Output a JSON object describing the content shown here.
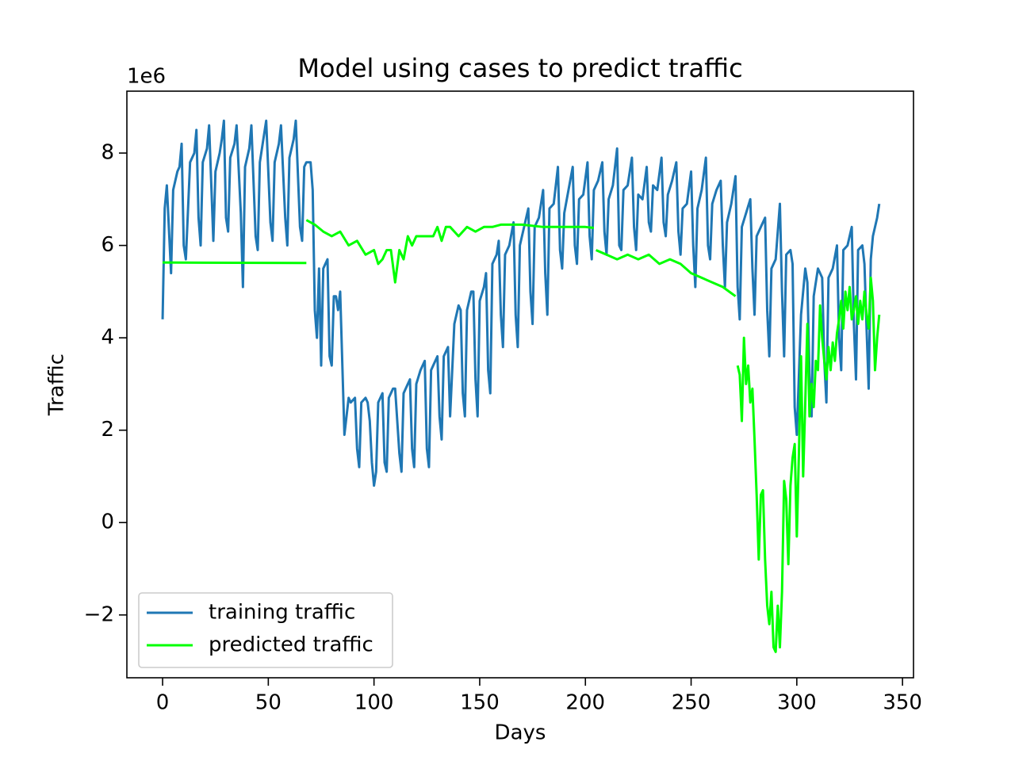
{
  "chart_data": {
    "type": "line",
    "title": "Model using cases to predict traffic",
    "xlabel": "Days",
    "ylabel": "Traffic",
    "y_offset_label": "1e6",
    "xlim": [
      -16.9,
      355.2
    ],
    "ylim": [
      -3.36,
      9.34
    ],
    "xticks": [
      0,
      50,
      100,
      150,
      200,
      250,
      300,
      350
    ],
    "yticks": [
      {
        "value": -2,
        "label": "−2"
      },
      0,
      2,
      4,
      6,
      8
    ],
    "legend": "lower left",
    "series": [
      {
        "name": "training traffic",
        "color": "#1f77b4",
        "x": [
          0,
          1,
          2,
          4,
          5,
          7,
          8,
          9,
          10,
          11,
          13,
          14,
          15,
          16,
          17,
          18,
          19,
          21,
          22,
          24,
          25,
          27,
          28,
          29,
          30,
          31,
          32,
          34,
          35,
          37,
          38,
          39,
          41,
          42,
          44,
          45,
          46,
          48,
          49,
          51,
          52,
          53,
          55,
          56,
          58,
          59,
          60,
          62,
          63,
          65,
          66,
          67,
          68,
          70,
          71,
          72,
          73,
          74,
          75,
          76,
          77,
          78,
          79,
          80,
          81,
          82,
          83,
          84,
          86,
          88,
          89,
          91,
          92,
          93,
          94,
          96,
          97,
          98,
          99,
          100,
          101,
          102,
          104,
          105,
          106,
          107,
          109,
          110,
          112,
          113,
          114,
          116,
          117,
          118,
          119,
          120,
          122,
          124,
          125,
          126,
          127,
          129,
          130,
          131,
          132,
          133,
          135,
          136,
          138,
          140,
          141,
          142,
          143,
          144,
          146,
          147,
          148,
          149,
          150,
          152,
          153,
          154,
          155,
          156,
          158,
          159,
          160,
          161,
          162,
          164,
          166,
          167,
          168,
          169,
          171,
          173,
          174,
          175,
          176,
          178,
          180,
          181,
          182,
          183,
          185,
          187,
          188,
          189,
          190,
          192,
          194,
          195,
          196,
          197,
          199,
          201,
          202,
          203,
          204,
          206,
          208,
          209,
          210,
          211,
          213,
          215,
          216,
          217,
          218,
          220,
          222,
          223,
          224,
          225,
          227,
          229,
          230,
          231,
          232,
          234,
          236,
          237,
          238,
          239,
          241,
          243,
          244,
          245,
          246,
          248,
          250,
          251,
          252,
          253,
          255,
          257,
          258,
          259,
          260,
          262,
          264,
          265,
          266,
          267,
          269,
          271,
          272,
          273,
          274,
          276,
          278,
          279,
          280,
          281,
          283,
          285,
          286,
          287,
          288,
          290,
          292,
          293,
          294,
          295,
          297,
          298,
          299,
          300,
          302,
          304,
          305,
          306,
          307,
          308,
          310,
          312,
          313,
          314,
          315,
          317,
          319,
          320,
          321,
          322,
          324,
          326,
          327,
          328,
          329,
          331,
          332,
          333,
          334,
          335,
          336,
          338,
          339
        ],
        "values": [
          4.4,
          6.8,
          7.3,
          5.4,
          7.2,
          7.6,
          7.7,
          8.2,
          6.0,
          5.7,
          7.8,
          7.9,
          8.0,
          8.5,
          6.6,
          6.0,
          7.8,
          8.1,
          8.6,
          6.1,
          7.6,
          8.0,
          8.3,
          8.7,
          6.6,
          6.3,
          7.9,
          8.2,
          8.6,
          6.7,
          5.1,
          7.7,
          8.1,
          8.6,
          6.2,
          5.9,
          7.8,
          8.4,
          8.7,
          6.5,
          6.1,
          7.8,
          8.2,
          8.6,
          6.6,
          6.0,
          7.9,
          8.3,
          8.7,
          6.4,
          6.1,
          7.7,
          7.8,
          7.8,
          7.2,
          4.6,
          4.0,
          5.5,
          3.4,
          5.5,
          5.6,
          5.7,
          3.6,
          3.4,
          4.9,
          4.9,
          4.6,
          5.0,
          1.9,
          2.7,
          2.6,
          2.7,
          1.6,
          1.2,
          2.6,
          2.7,
          2.6,
          2.2,
          1.3,
          0.8,
          1.1,
          2.6,
          2.8,
          1.3,
          1.1,
          2.7,
          2.9,
          2.9,
          1.5,
          1.1,
          2.8,
          3.0,
          3.1,
          1.6,
          1.2,
          3.0,
          3.3,
          3.5,
          1.6,
          1.2,
          3.3,
          3.5,
          3.6,
          2.3,
          1.8,
          3.6,
          3.8,
          2.3,
          4.3,
          4.7,
          4.6,
          2.8,
          2.3,
          4.6,
          5.0,
          5.0,
          3.1,
          2.3,
          4.8,
          5.1,
          5.4,
          3.3,
          2.8,
          5.6,
          5.8,
          6.1,
          4.5,
          3.8,
          5.8,
          6.0,
          6.5,
          4.5,
          3.8,
          6.0,
          6.4,
          6.8,
          5.0,
          4.3,
          6.4,
          6.6,
          7.2,
          5.4,
          4.5,
          6.8,
          6.9,
          7.7,
          5.9,
          5.5,
          6.7,
          7.2,
          7.7,
          6.0,
          5.6,
          7.0,
          7.1,
          7.8,
          6.2,
          5.7,
          7.2,
          7.4,
          7.8,
          6.3,
          5.8,
          7.0,
          7.3,
          8.1,
          6.0,
          5.9,
          7.2,
          7.3,
          7.9,
          6.4,
          5.9,
          7.1,
          7.0,
          7.7,
          6.5,
          6.3,
          7.3,
          7.2,
          7.9,
          6.5,
          6.2,
          7.1,
          7.4,
          7.8,
          6.3,
          5.8,
          6.8,
          6.9,
          7.6,
          6.0,
          5.1,
          6.8,
          7.2,
          7.9,
          6.0,
          5.7,
          6.9,
          7.2,
          7.4,
          6.0,
          5.1,
          6.5,
          6.9,
          7.5,
          5.1,
          4.4,
          6.4,
          6.7,
          7.0,
          5.5,
          4.5,
          6.2,
          6.4,
          6.6,
          4.6,
          3.6,
          5.5,
          5.7,
          6.9,
          5.0,
          3.6,
          5.8,
          5.9,
          5.6,
          2.5,
          1.9,
          4.5,
          5.5,
          5.2,
          3.2,
          2.3,
          4.9,
          5.5,
          5.3,
          3.5,
          2.6,
          5.3,
          5.5,
          6.0,
          4.0,
          3.3,
          5.9,
          6.0,
          6.4,
          4.3,
          3.1,
          5.9,
          6.0,
          5.6,
          4.2,
          2.9,
          5.7,
          6.2,
          6.6,
          6.9
        ]
      },
      {
        "name": "predicted traffic",
        "color": "#00ff00",
        "x": [
          0,
          68,
          68.5,
          68,
          72,
          76,
          80,
          84,
          88,
          92,
          96,
          100,
          102,
          104,
          106,
          108,
          110,
          112,
          114,
          116,
          118,
          120,
          124,
          128,
          130,
          132,
          134,
          136,
          138,
          140,
          144,
          148,
          152,
          156,
          160,
          170,
          180,
          190,
          200,
          204,
          204.5,
          205,
          210,
          215,
          220,
          225,
          230,
          235,
          240,
          245,
          250,
          255,
          260,
          265,
          268,
          271,
          271.5,
          272,
          273,
          274,
          275,
          276,
          277,
          278,
          279,
          280,
          281,
          282,
          283,
          284,
          285,
          286,
          287,
          288,
          289,
          290,
          291,
          292,
          293,
          294,
          295,
          296,
          297,
          298,
          299,
          300,
          301,
          302,
          303,
          304,
          305,
          306,
          307,
          308,
          309,
          310,
          311,
          312,
          313,
          314,
          315,
          316,
          317,
          318,
          319,
          320,
          321,
          322,
          323,
          324,
          325,
          326,
          327,
          328,
          329,
          330,
          331,
          332,
          333,
          334,
          335,
          336,
          337,
          338,
          339
        ],
        "values": [
          5.63,
          5.62,
          null,
          6.55,
          6.45,
          6.3,
          6.2,
          6.3,
          6.0,
          6.1,
          5.8,
          5.9,
          5.6,
          5.7,
          5.9,
          5.9,
          5.2,
          5.9,
          5.7,
          6.2,
          6.0,
          6.2,
          6.2,
          6.2,
          6.4,
          6.1,
          6.4,
          6.4,
          6.3,
          6.2,
          6.4,
          6.3,
          6.4,
          6.4,
          6.45,
          6.45,
          6.4,
          6.4,
          6.4,
          6.38,
          null,
          5.9,
          5.8,
          5.7,
          5.8,
          5.7,
          5.8,
          5.6,
          5.7,
          5.6,
          5.4,
          5.3,
          5.2,
          5.1,
          5.0,
          4.9,
          null,
          3.4,
          3.2,
          2.2,
          4.0,
          3.0,
          3.4,
          2.6,
          2.9,
          1.8,
          0.6,
          -0.8,
          0.6,
          0.7,
          -0.8,
          -1.8,
          -2.2,
          -1.5,
          -2.7,
          -2.8,
          -1.8,
          -2.7,
          -1.5,
          0.9,
          0.5,
          -0.9,
          0.8,
          1.4,
          1.7,
          -0.3,
          1.5,
          3.6,
          1.0,
          2.6,
          4.3,
          2.3,
          3.0,
          2.5,
          3.5,
          3.3,
          4.7,
          4.0,
          3.5,
          3.1,
          3.8,
          3.3,
          3.9,
          3.5,
          4.1,
          4.4,
          4.8,
          4.2,
          5.0,
          4.6,
          5.1,
          4.4,
          4.6,
          4.9,
          4.3,
          4.8,
          4.4,
          5.0,
          4.5,
          4.2,
          5.3,
          4.8,
          3.3,
          4.0,
          4.5
        ]
      }
    ]
  }
}
